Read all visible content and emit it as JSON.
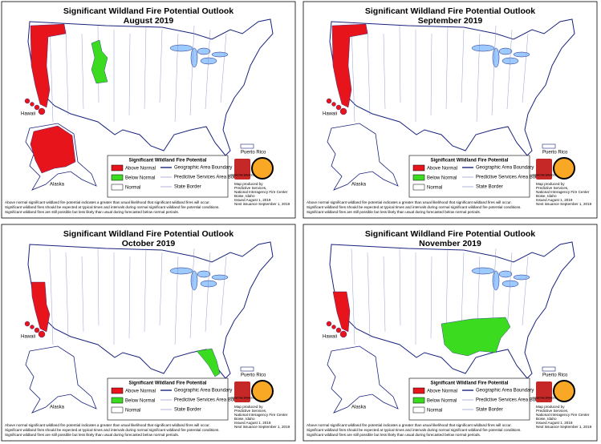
{
  "common": {
    "title": "Significant Wildland Fire Potential Outlook",
    "legend_title": "Significant Wildland Fire Potential",
    "legend_items": [
      {
        "name": "Above Normal",
        "color": "#e8141c"
      },
      {
        "name": "Below Normal",
        "color": "#3bdc1f"
      },
      {
        "name": "Normal",
        "color": "#ffffff"
      }
    ],
    "boundaries": [
      "Geographic Area Boundary",
      "Predictive Services Area Boundary",
      "State Border"
    ],
    "logo": "PREDICTIVE SERVICES",
    "producer": [
      "Map produced by",
      "Predictive Services,",
      "National Interagency Fire Center",
      "Boise, Idaho"
    ],
    "issued": "Issued August 1, 2019",
    "next": "Next issuance September 1, 2019",
    "places": [
      "Hawaii",
      "Alaska",
      "Puerto Rico"
    ],
    "footnotes": [
      "Above normal significant wildland fire potential indicates a greater than usual likelihood that significant wildland fires will occur.",
      "Significant wildland fires should be expected at typical times and intervals during normal significant wildland fire potential conditions.",
      "Significant wildland fires are still possible but less likely than usual during forecasted below normal periods."
    ]
  },
  "panels": [
    {
      "month": "August 2019"
    },
    {
      "month": "September 2019"
    },
    {
      "month": "October 2019"
    },
    {
      "month": "November 2019"
    }
  ]
}
